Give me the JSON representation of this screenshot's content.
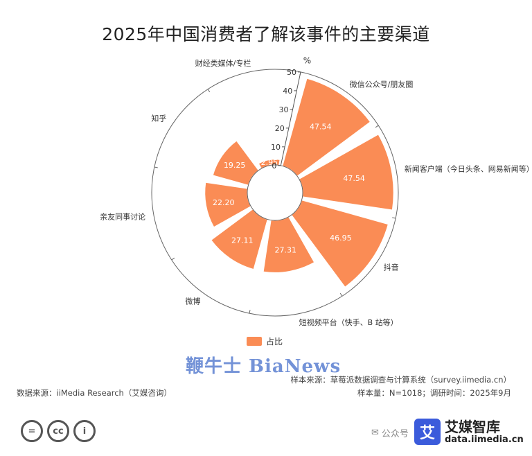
{
  "chart_data": {
    "type": "bar",
    "polar": true,
    "title": "2025年中国消费者了解该事件的主要渠道",
    "unit": "%",
    "rlim": [
      0,
      50
    ],
    "r_ticks": [
      0,
      10,
      20,
      30,
      40,
      50
    ],
    "categories": [
      "微信公众号/朋友圈",
      "新闻客户端（今日头条、网易新闻等）",
      "抖音",
      "短视频平台（快手、B 站等）",
      "微博",
      "亲友同事讨论",
      "知乎",
      "财经类媒体/专栏"
    ],
    "series": [
      {
        "name": "占比",
        "color": "#fa8c55",
        "values": [
          47.54,
          47.54,
          46.95,
          27.31,
          27.11,
          22.2,
          19.25,
          2.95
        ]
      }
    ],
    "value_labels": [
      "47.54",
      "47.54",
      "46.95",
      "27.31",
      "27.11",
      "22.20",
      "19.25",
      "2.95"
    ],
    "legend": "bottom"
  },
  "watermark": "鞭牛士 BiaNews",
  "footer": {
    "source": "数据来源：iiMedia Research（艾媒咨询）",
    "sample_source": "样本来源：草莓派数据调查与计算系统（survey.iimedia.cn）",
    "sample_info": "样本量：N=1018；调研时间：2025年9月"
  },
  "cc_badges": [
    "=",
    "cc",
    "i"
  ],
  "wechat_text": "公众号",
  "brand": {
    "logo_char": "艾",
    "name": "艾媒智库",
    "url": "data.iimedia.cn"
  }
}
